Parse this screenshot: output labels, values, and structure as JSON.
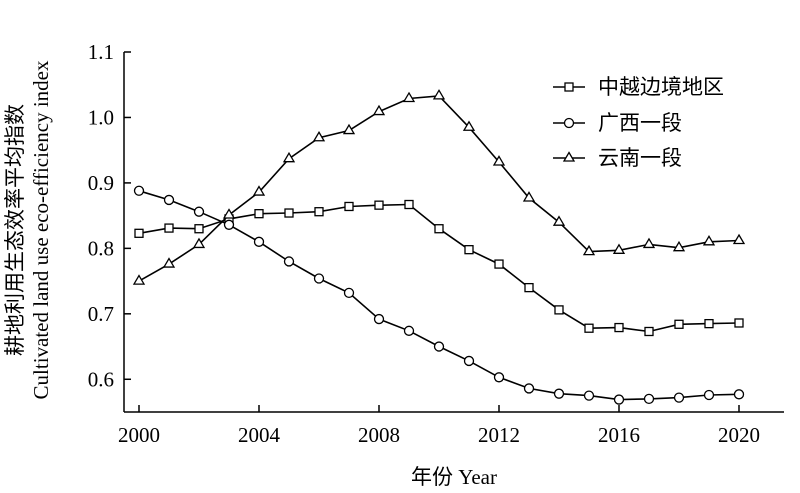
{
  "chart_data": {
    "type": "line",
    "title": "",
    "xlabel": "年份 Year",
    "ylabel_zh": "耕地利用生态效率平均指数",
    "ylabel_en": "Cultivated land use eco-efficiency index",
    "xlim": [
      1999.5,
      2021.5
    ],
    "ylim": [
      0.55,
      1.1
    ],
    "x_ticks": [
      2000,
      2004,
      2008,
      2012,
      2016,
      2020
    ],
    "y_ticks": [
      0.6,
      0.7,
      0.8,
      0.9,
      1.0,
      1.1
    ],
    "y_tick_labels": [
      "0.6",
      "0.7",
      "0.8",
      "0.9",
      "1.0",
      "1.1"
    ],
    "grid": false,
    "legend_position": "top-right",
    "x": [
      2000,
      2001,
      2002,
      2003,
      2004,
      2005,
      2006,
      2007,
      2008,
      2009,
      2010,
      2011,
      2012,
      2013,
      2014,
      2015,
      2016,
      2017,
      2018,
      2019,
      2020
    ],
    "series": [
      {
        "name": "中越边境地区",
        "marker": "square",
        "values": [
          0.823,
          0.831,
          0.83,
          0.845,
          0.853,
          0.854,
          0.856,
          0.864,
          0.866,
          0.867,
          0.83,
          0.798,
          0.776,
          0.74,
          0.706,
          0.678,
          0.679,
          0.673,
          0.684,
          0.685,
          0.686
        ]
      },
      {
        "name": "广西一段",
        "marker": "circle",
        "values": [
          0.888,
          0.874,
          0.856,
          0.836,
          0.81,
          0.78,
          0.754,
          0.732,
          0.692,
          0.674,
          0.65,
          0.628,
          0.603,
          0.586,
          0.578,
          0.575,
          0.569,
          0.57,
          0.572,
          0.576,
          0.577
        ]
      },
      {
        "name": "云南一段",
        "marker": "triangle",
        "values": [
          0.75,
          0.776,
          0.806,
          0.851,
          0.886,
          0.937,
          0.969,
          0.98,
          1.009,
          1.029,
          1.033,
          0.985,
          0.932,
          0.877,
          0.84,
          0.795,
          0.797,
          0.806,
          0.801,
          0.81,
          0.812
        ]
      }
    ]
  }
}
